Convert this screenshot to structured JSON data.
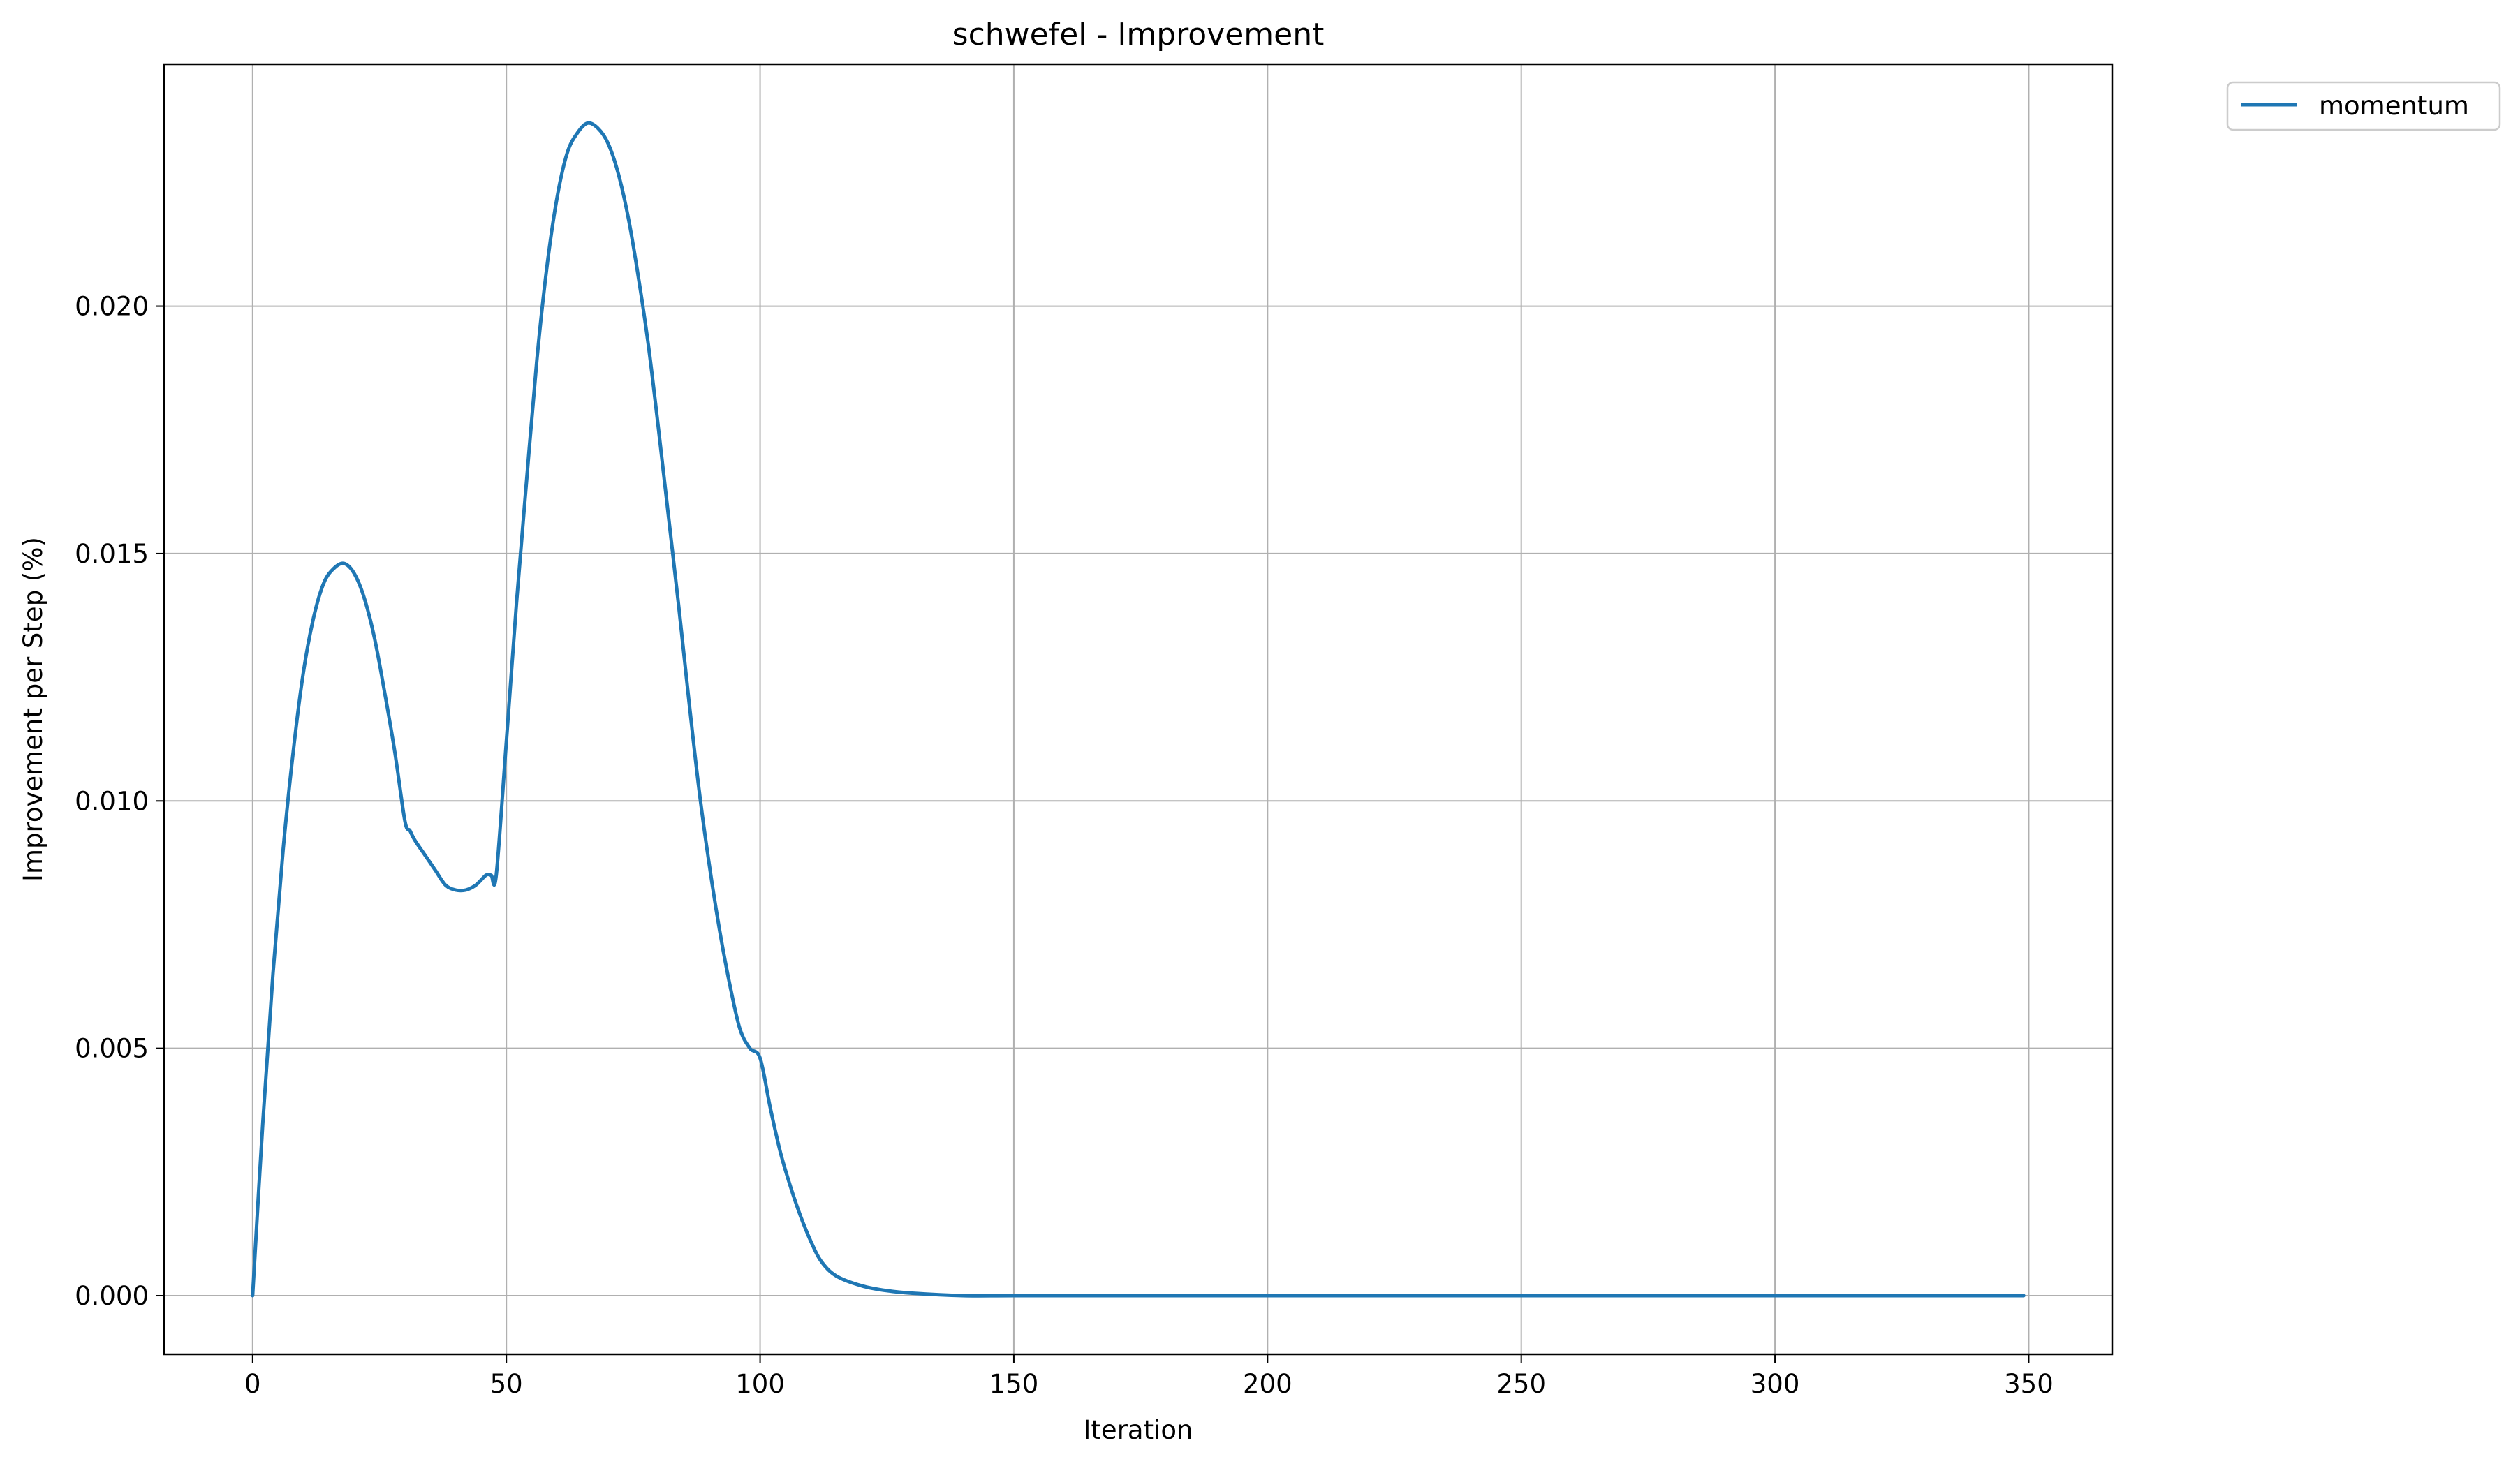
{
  "chart_data": {
    "type": "line",
    "title": "schwefel - Improvement",
    "xlabel": "Iteration",
    "ylabel": "Improvement per Step (%)",
    "xlim": [
      -17.45,
      366.45
    ],
    "ylim": [
      -0.001185,
      0.02489
    ],
    "xticks": [
      0,
      50,
      100,
      150,
      200,
      250,
      300,
      350
    ],
    "xtick_labels": [
      "0",
      "50",
      "100",
      "150",
      "200",
      "250",
      "300",
      "350"
    ],
    "yticks": [
      0.0,
      0.005,
      0.01,
      0.015,
      0.02
    ],
    "ytick_labels": [
      "0.000",
      "0.005",
      "0.010",
      "0.015",
      "0.020"
    ],
    "grid": true,
    "legend_position": "outside-top-right",
    "series": [
      {
        "name": "momentum",
        "color": "#1f77b4",
        "x": [
          0,
          2,
          4,
          6,
          8,
          10,
          12,
          14,
          16,
          18,
          20,
          22,
          24,
          26,
          28,
          30,
          31,
          32,
          34,
          36,
          38,
          40,
          42,
          44,
          46,
          47,
          48,
          50,
          52,
          54,
          56,
          58,
          60,
          62,
          64,
          66,
          68,
          70,
          72,
          74,
          76,
          78,
          80,
          82,
          84,
          86,
          88,
          90,
          92,
          94,
          96,
          98,
          100,
          102,
          104,
          106,
          108,
          110,
          112,
          115,
          120,
          125,
          130,
          140,
          150,
          170,
          200,
          250,
          300,
          349
        ],
        "y": [
          0.0,
          0.0035,
          0.0065,
          0.009,
          0.011,
          0.0126,
          0.0137,
          0.0144,
          0.0147,
          0.0148,
          0.0146,
          0.0141,
          0.0133,
          0.0122,
          0.011,
          0.0096,
          0.0094,
          0.0092,
          0.0089,
          0.0086,
          0.0083,
          0.0082,
          0.0082,
          0.0083,
          0.0085,
          0.0085,
          0.0085,
          0.0112,
          0.014,
          0.0165,
          0.0189,
          0.0208,
          0.0222,
          0.0231,
          0.0235,
          0.0237,
          0.0236,
          0.0233,
          0.0227,
          0.0218,
          0.0206,
          0.0192,
          0.0175,
          0.0157,
          0.0139,
          0.012,
          0.0102,
          0.0087,
          0.0074,
          0.0063,
          0.0054,
          0.005,
          0.0048,
          0.0038,
          0.0029,
          0.0022,
          0.0016,
          0.0011,
          0.0007,
          0.0004,
          0.0002,
          0.0001,
          5e-05,
          0.0,
          0.0,
          0.0,
          0.0,
          0.0,
          0.0,
          0.0
        ]
      }
    ]
  }
}
